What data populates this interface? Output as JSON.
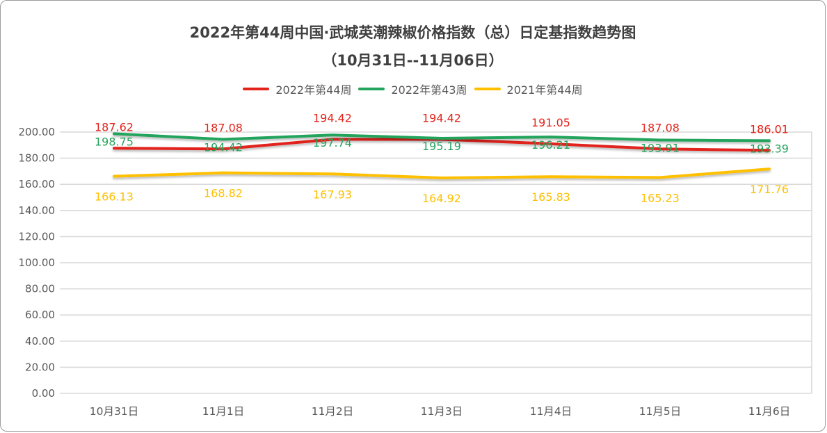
{
  "title": {
    "line1": "2022年第44周中国·武城英潮辣椒价格指数（总）日定基指数趋势图",
    "line2": "（10月31日--11月06日）"
  },
  "axis": {
    "y_tick_labels": [
      "0.00",
      "20.00",
      "40.00",
      "60.00",
      "80.00",
      "100.00",
      "120.00",
      "140.00",
      "160.00",
      "180.00",
      "200.00"
    ],
    "label_color": "#595959",
    "gridline_color": "#d9d9d9"
  },
  "chart_data": {
    "type": "line",
    "title": "2022年第44周中国·武城英潮辣椒价格指数（总）日定基指数趋势图（10月31日--11月06日）",
    "categories": [
      "10月31日",
      "11月1日",
      "11月2日",
      "11月3日",
      "11月4日",
      "11月5日",
      "11月6日"
    ],
    "series": [
      {
        "name": "2022年第44周",
        "color": "#e2231a",
        "values": [
          187.62,
          187.08,
          194.42,
          194.42,
          191.05,
          187.08,
          186.01
        ]
      },
      {
        "name": "2022年第43周",
        "color": "#23a45c",
        "values": [
          198.75,
          194.42,
          197.74,
          195.19,
          196.21,
          193.91,
          193.39
        ]
      },
      {
        "name": "2021年第44周",
        "color": "#fec000",
        "values": [
          166.13,
          168.82,
          167.93,
          164.92,
          165.83,
          165.23,
          171.76
        ]
      }
    ],
    "xlabel": "",
    "ylabel": "",
    "ylim": [
      0,
      200
    ],
    "ytick_step": 20,
    "value_label_decimals": 2,
    "grid": true,
    "legend_position": "top"
  }
}
